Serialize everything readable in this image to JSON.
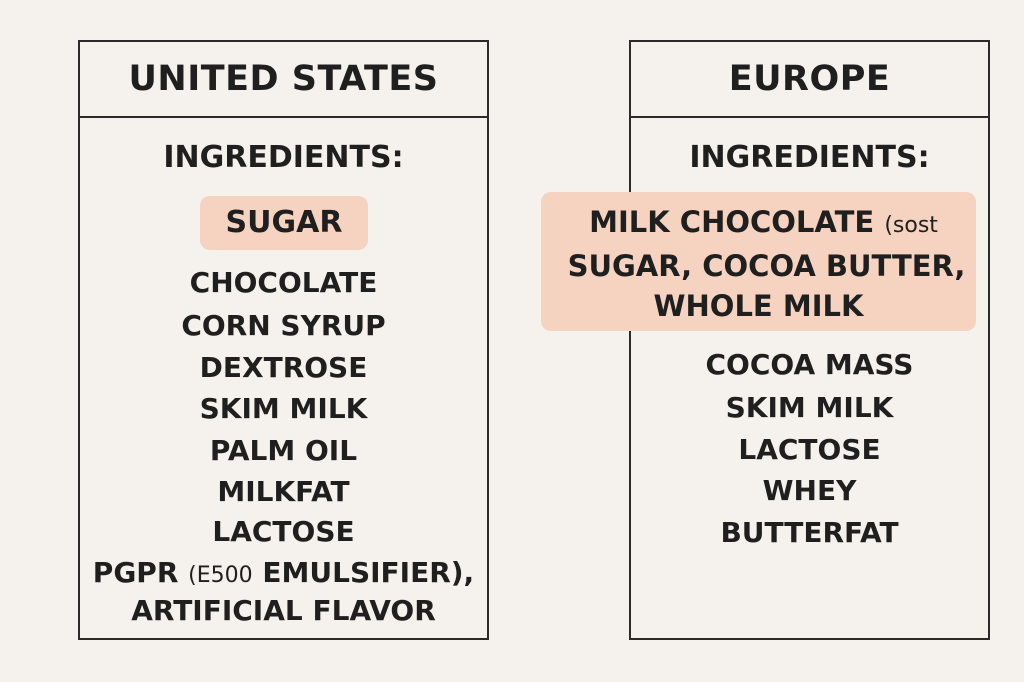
{
  "us": {
    "title": "UNITED STATES",
    "ingredients_label": "INGREDIENTS:",
    "highlight": "SUGAR",
    "items": [
      "CHOCOLATE",
      "CORN SYRUP",
      "DEXTROSE",
      "SKIM MILK",
      "PALM OIL",
      "MILKFAT",
      "LACTOSE"
    ],
    "pgpr_a": "PGPR",
    "pgpr_b": "(E500",
    "pgpr_c": "EMULSIFIER),",
    "last": "ARTIFICIAL FLAVOR"
  },
  "eu": {
    "title": "EUROPE",
    "ingredients_label": "INGREDIENTS:",
    "highlight_line1a": "MILK CHOCOLATE",
    "highlight_line1b": "(sost",
    "highlight_line2": "SUGAR, COCOA BUTTER,",
    "highlight_line3": "WHOLE MILK",
    "items": [
      "COCOA MASS",
      "SKIM MILK",
      "LACTOSE",
      "WHEY",
      "BUTTERFAT"
    ]
  },
  "colors": {
    "background": "#f5f1ec",
    "highlight": "#f5d3c0",
    "border": "#2a2a2a"
  }
}
